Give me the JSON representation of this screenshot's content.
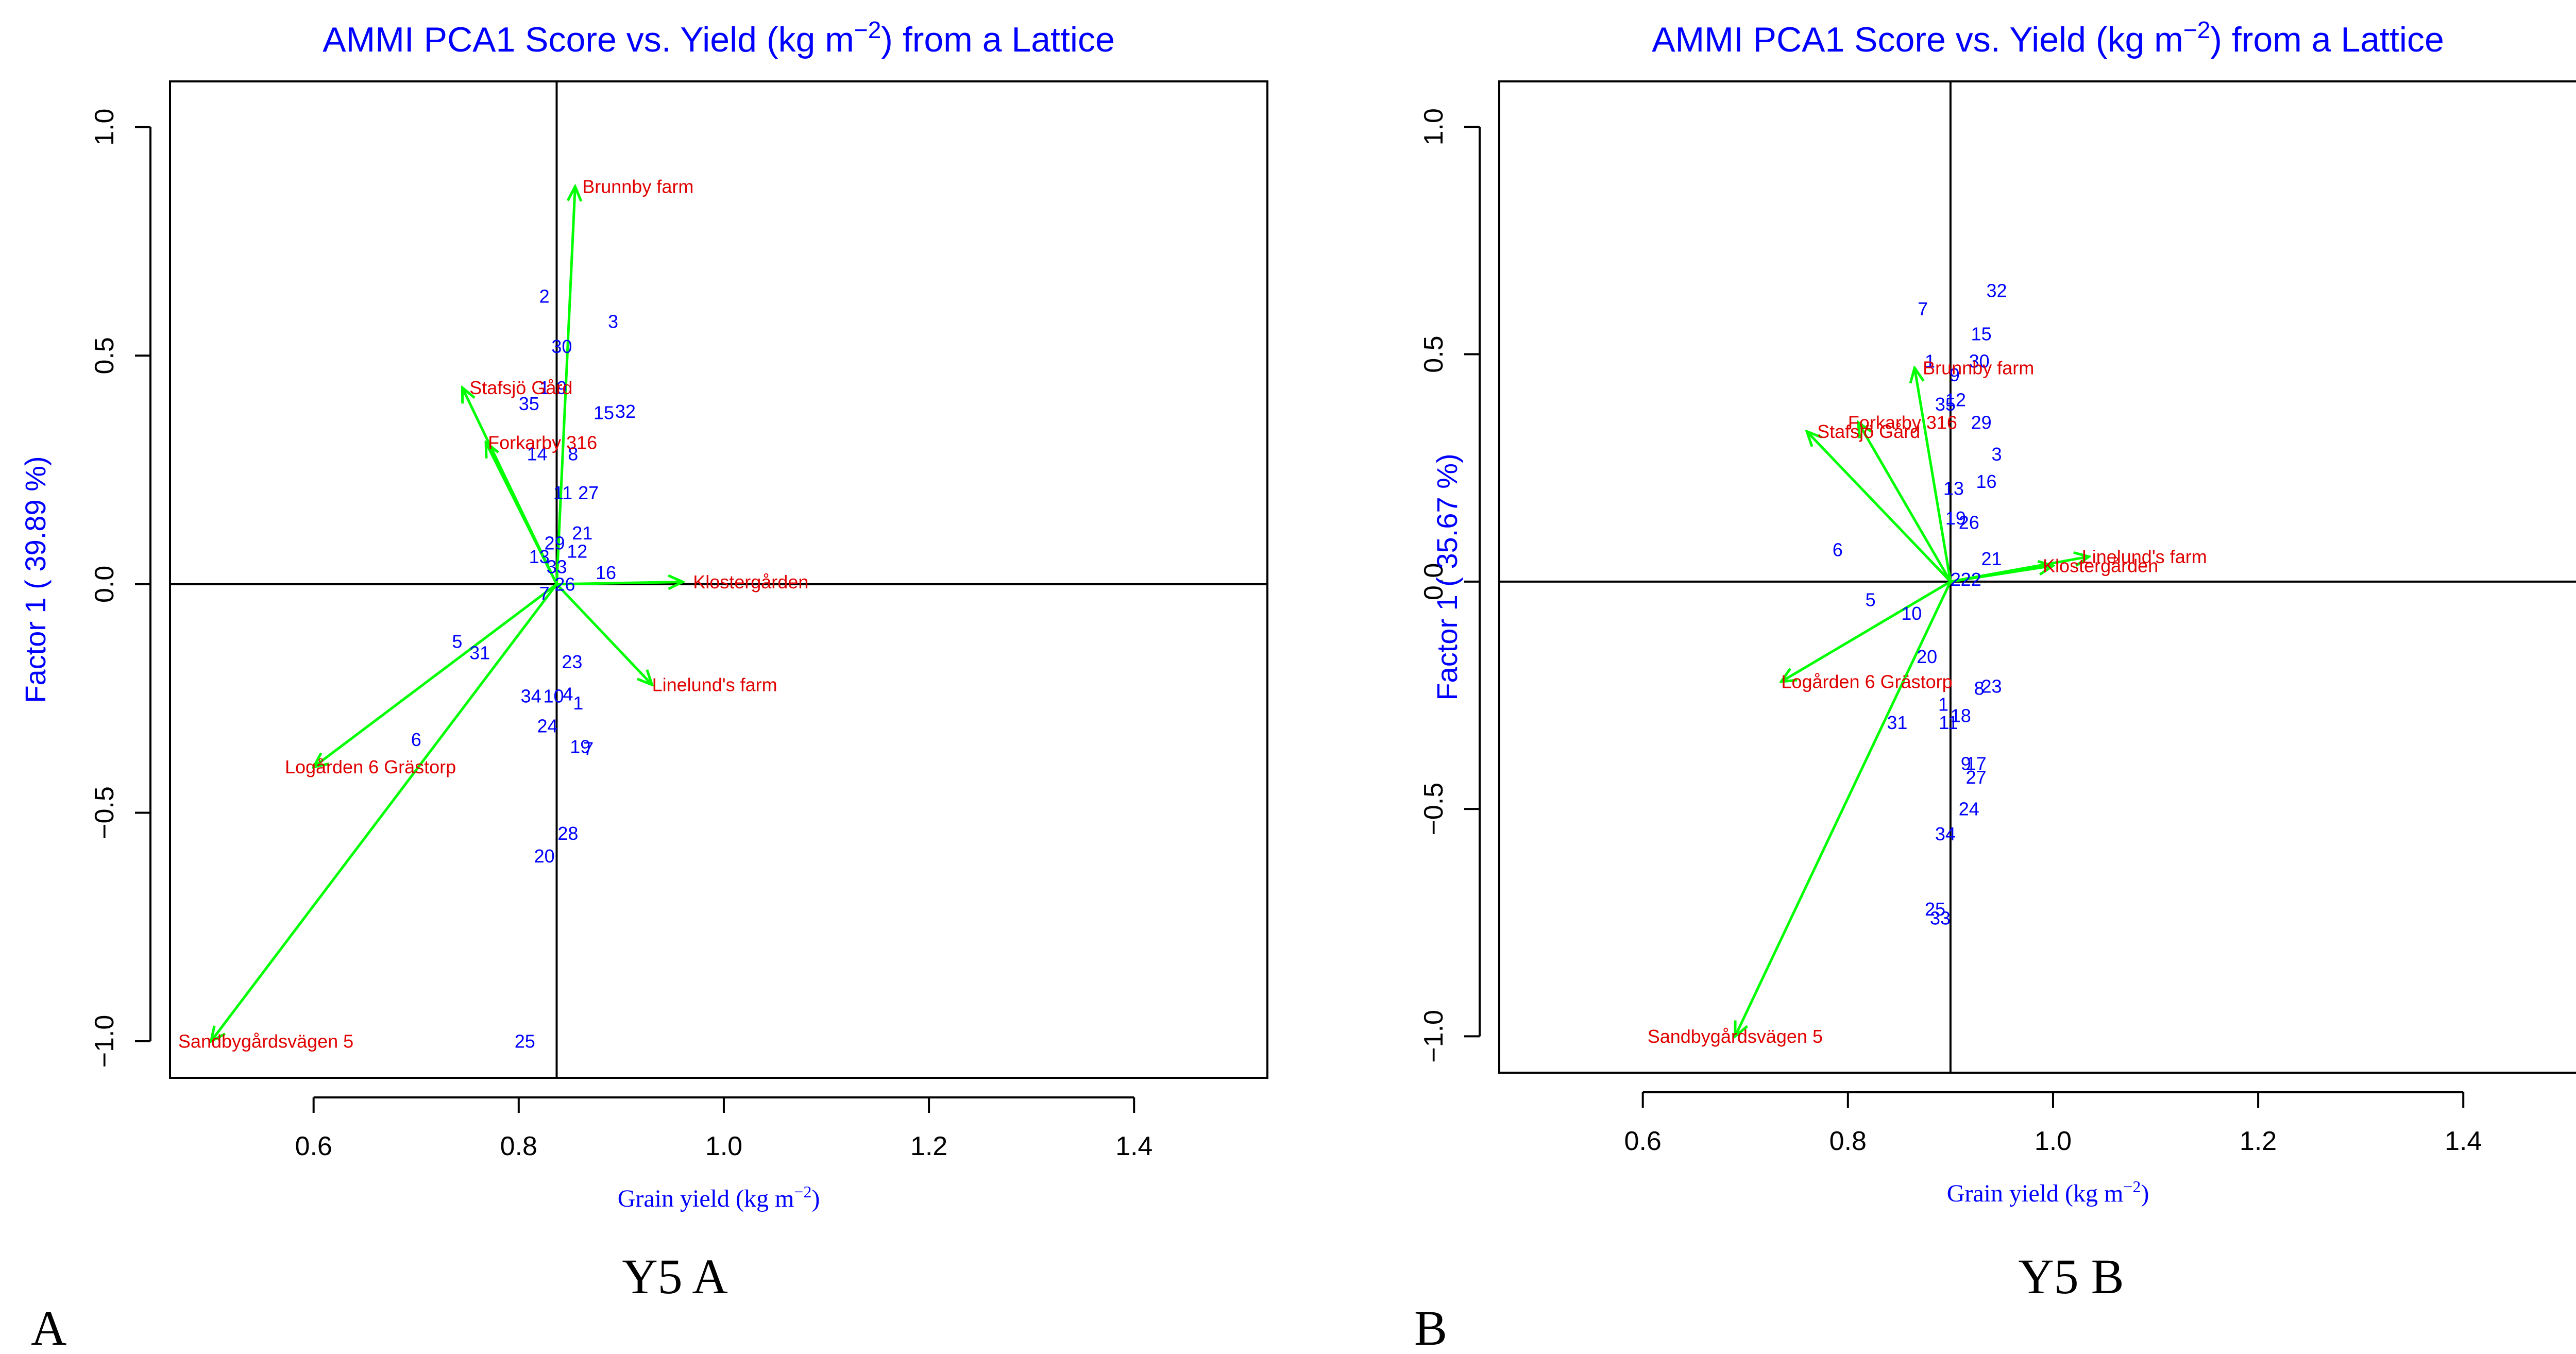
{
  "chart_data": [
    {
      "type": "scatter",
      "panel_letter": "A",
      "caption": "Y5 A",
      "title_prefix": "AMMI PCA1 Score vs. Yield (kg m",
      "title_exp": "−2",
      "title_suffix": ") from a Lattice",
      "xlabel_prefix": "Grain yield (kg m",
      "xlabel_exp": "−2",
      "xlabel_suffix": ")",
      "ylabel": "Factor 1 ( 39.89 %)",
      "xlim": [
        0.46,
        1.53
      ],
      "ylim": [
        -1.08,
        1.1
      ],
      "xticks": [
        0.6,
        0.8,
        1.0,
        1.2,
        1.4
      ],
      "xtick_labels": [
        "0.6",
        "0.8",
        "1.0",
        "1.2",
        "1.4"
      ],
      "yticks": [
        -1.0,
        -0.5,
        0.0,
        0.5,
        1.0
      ],
      "ytick_labels": [
        "−1.0",
        "−0.5",
        "0.0",
        "0.5",
        "1.0"
      ],
      "reference_lines": {
        "x": 0.837,
        "y": 0.0
      },
      "origin": [
        0.837,
        0.0
      ],
      "genotypes": [
        {
          "label": "2",
          "x": 0.825,
          "y": 0.63
        },
        {
          "label": "3",
          "x": 0.892,
          "y": 0.575
        },
        {
          "label": "30",
          "x": 0.842,
          "y": 0.52
        },
        {
          "label": "1",
          "x": 0.825,
          "y": 0.43
        },
        {
          "label": "9",
          "x": 0.842,
          "y": 0.43
        },
        {
          "label": "35",
          "x": 0.81,
          "y": 0.395
        },
        {
          "label": "15",
          "x": 0.883,
          "y": 0.375
        },
        {
          "label": "32",
          "x": 0.904,
          "y": 0.378
        },
        {
          "label": "14",
          "x": 0.818,
          "y": 0.285
        },
        {
          "label": "8",
          "x": 0.853,
          "y": 0.285
        },
        {
          "label": "11",
          "x": 0.843,
          "y": 0.2
        },
        {
          "label": "27",
          "x": 0.868,
          "y": 0.2
        },
        {
          "label": "21",
          "x": 0.862,
          "y": 0.112
        },
        {
          "label": "29",
          "x": 0.835,
          "y": 0.09
        },
        {
          "label": "12",
          "x": 0.857,
          "y": 0.072
        },
        {
          "label": "13",
          "x": 0.82,
          "y": 0.06
        },
        {
          "label": "33",
          "x": 0.837,
          "y": 0.038
        },
        {
          "label": "16",
          "x": 0.885,
          "y": 0.025
        },
        {
          "label": "26",
          "x": 0.845,
          "y": 0.0
        },
        {
          "label": "7",
          "x": 0.825,
          "y": -0.02
        },
        {
          "label": "5",
          "x": 0.74,
          "y": -0.125
        },
        {
          "label": "31",
          "x": 0.762,
          "y": -0.15
        },
        {
          "label": "23",
          "x": 0.852,
          "y": -0.17
        },
        {
          "label": "34",
          "x": 0.812,
          "y": -0.245
        },
        {
          "label": "10",
          "x": 0.834,
          "y": -0.245
        },
        {
          "label": "4",
          "x": 0.848,
          "y": -0.24
        },
        {
          "label": "1",
          "x": 0.858,
          "y": -0.26
        },
        {
          "label": "24",
          "x": 0.828,
          "y": -0.31
        },
        {
          "label": "6",
          "x": 0.7,
          "y": -0.34
        },
        {
          "label": "19",
          "x": 0.86,
          "y": -0.355
        },
        {
          "label": "7",
          "x": 0.868,
          "y": -0.36
        },
        {
          "label": "28",
          "x": 0.848,
          "y": -0.545
        },
        {
          "label": "20",
          "x": 0.825,
          "y": -0.595
        },
        {
          "label": "25",
          "x": 0.806,
          "y": -1.0
        }
      ],
      "environments": [
        {
          "label": "Brunnby farm",
          "x": 0.855,
          "y": 0.87,
          "label_x": 0.862,
          "label_y": 0.87,
          "anchor": "start"
        },
        {
          "label": "Stafsjö Gård",
          "x": 0.745,
          "y": 0.43,
          "label_x": 0.752,
          "label_y": 0.43,
          "anchor": "start"
        },
        {
          "label": "Forkarby 316",
          "x": 0.768,
          "y": 0.31,
          "label_x": 0.77,
          "label_y": 0.31,
          "anchor": "start"
        },
        {
          "label": "Klostergården",
          "x": 0.96,
          "y": 0.005,
          "label_x": 0.97,
          "label_y": 0.005,
          "anchor": "start"
        },
        {
          "label": "Linelund's farm",
          "x": 0.93,
          "y": -0.22,
          "label_x": 0.93,
          "label_y": -0.22,
          "anchor": "start"
        },
        {
          "label": "Logården 6 Grästorp",
          "x": 0.6,
          "y": -0.4,
          "label_x": 0.572,
          "label_y": -0.4,
          "anchor": "start"
        },
        {
          "label": "Sandbygårdsvägen 5",
          "x": 0.5,
          "y": -1.0,
          "label_x": 0.468,
          "label_y": -1.0,
          "anchor": "start"
        }
      ]
    },
    {
      "type": "scatter",
      "panel_letter": "B",
      "caption": "Y5 B",
      "title_prefix": "AMMI PCA1 Score vs. Yield (kg m",
      "title_exp": "−2",
      "title_suffix": ") from a Lattice",
      "xlabel_prefix": "Grain yield (kg m",
      "xlabel_exp": "−2",
      "xlabel_suffix": ")",
      "ylabel": "Factor 1 ( 35.67 %)",
      "xlim": [
        0.46,
        1.53
      ],
      "ylim": [
        -1.08,
        1.1
      ],
      "xticks": [
        0.6,
        0.8,
        1.0,
        1.2,
        1.4
      ],
      "xtick_labels": [
        "0.6",
        "0.8",
        "1.0",
        "1.2",
        "1.4"
      ],
      "yticks": [
        -1.0,
        -0.5,
        0.0,
        0.5,
        1.0
      ],
      "ytick_labels": [
        "−1.0",
        "−0.5",
        "0.0",
        "0.5",
        "1.0"
      ],
      "reference_lines": {
        "x": 0.9,
        "y": 0.0
      },
      "origin": [
        0.9,
        0.0
      ],
      "genotypes": [
        {
          "label": "32",
          "x": 0.945,
          "y": 0.64
        },
        {
          "label": "7",
          "x": 0.873,
          "y": 0.6
        },
        {
          "label": "15",
          "x": 0.93,
          "y": 0.545
        },
        {
          "label": "30",
          "x": 0.928,
          "y": 0.485
        },
        {
          "label": "1",
          "x": 0.88,
          "y": 0.485
        },
        {
          "label": "9",
          "x": 0.904,
          "y": 0.455
        },
        {
          "label": "35",
          "x": 0.895,
          "y": 0.39
        },
        {
          "label": "12",
          "x": 0.905,
          "y": 0.4
        },
        {
          "label": "29",
          "x": 0.93,
          "y": 0.35
        },
        {
          "label": "3",
          "x": 0.945,
          "y": 0.28
        },
        {
          "label": "16",
          "x": 0.935,
          "y": 0.22
        },
        {
          "label": "13",
          "x": 0.903,
          "y": 0.205
        },
        {
          "label": "19",
          "x": 0.905,
          "y": 0.14
        },
        {
          "label": "26",
          "x": 0.918,
          "y": 0.13
        },
        {
          "label": "21",
          "x": 0.94,
          "y": 0.05
        },
        {
          "label": "6",
          "x": 0.79,
          "y": 0.07
        },
        {
          "label": "2",
          "x": 0.905,
          "y": 0.005
        },
        {
          "label": "22",
          "x": 0.92,
          "y": 0.005
        },
        {
          "label": "5",
          "x": 0.822,
          "y": -0.04
        },
        {
          "label": "10",
          "x": 0.862,
          "y": -0.07
        },
        {
          "label": "20",
          "x": 0.877,
          "y": -0.165
        },
        {
          "label": "1",
          "x": 0.893,
          "y": -0.27
        },
        {
          "label": "8",
          "x": 0.928,
          "y": -0.235
        },
        {
          "label": "23",
          "x": 0.94,
          "y": -0.23
        },
        {
          "label": "11",
          "x": 0.898,
          "y": -0.31
        },
        {
          "label": "18",
          "x": 0.91,
          "y": -0.295
        },
        {
          "label": "31",
          "x": 0.848,
          "y": -0.31
        },
        {
          "label": "9",
          "x": 0.915,
          "y": -0.4
        },
        {
          "label": "17",
          "x": 0.925,
          "y": -0.4
        },
        {
          "label": "27",
          "x": 0.925,
          "y": -0.43
        },
        {
          "label": "24",
          "x": 0.918,
          "y": -0.5
        },
        {
          "label": "34",
          "x": 0.895,
          "y": -0.555
        },
        {
          "label": "25",
          "x": 0.885,
          "y": -0.72
        },
        {
          "label": "33",
          "x": 0.89,
          "y": -0.74
        }
      ],
      "environments": [
        {
          "label": "Brunnby farm",
          "x": 0.865,
          "y": 0.47,
          "label_x": 0.873,
          "label_y": 0.47,
          "anchor": "start"
        },
        {
          "label": "Forkarby 316",
          "x": 0.81,
          "y": 0.35,
          "label_x": 0.8,
          "label_y": 0.35,
          "anchor": "start"
        },
        {
          "label": "Stafsjö Gård",
          "x": 0.76,
          "y": 0.33,
          "label_x": 0.77,
          "label_y": 0.33,
          "anchor": "start"
        },
        {
          "label": "Linelund's farm",
          "x": 1.035,
          "y": 0.055,
          "label_x": 1.028,
          "label_y": 0.055,
          "anchor": "start"
        },
        {
          "label": "Klostergården",
          "x": 1.0,
          "y": 0.035,
          "label_x": 0.99,
          "label_y": 0.035,
          "anchor": "start"
        },
        {
          "label": "Logården 6 Grästorp",
          "x": 0.735,
          "y": -0.22,
          "label_x": 0.735,
          "label_y": -0.22,
          "anchor": "start"
        },
        {
          "label": "Sandbygårdsvägen 5",
          "x": 0.69,
          "y": -1.0,
          "label_x": 0.69,
          "label_y": -1.0,
          "anchor": "middle"
        }
      ]
    }
  ]
}
